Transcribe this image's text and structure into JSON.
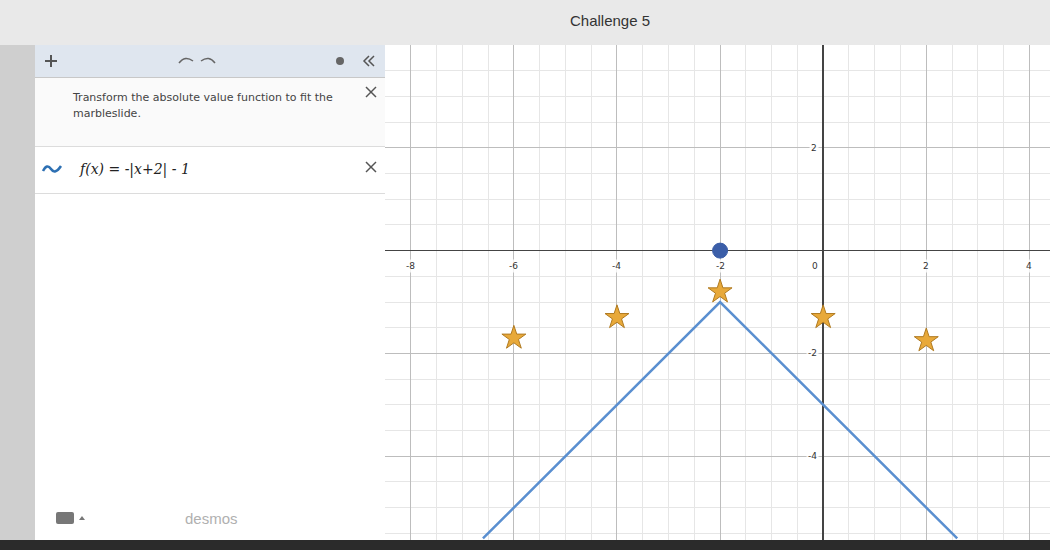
{
  "header": {
    "title": "Challenge 5"
  },
  "expressions": [
    {
      "kind": "note",
      "text": "Transform the absolute value function to fit the marbleslide."
    },
    {
      "kind": "function",
      "text": "f(x) = -|x+2| - 1"
    }
  ],
  "footer": {
    "brand": "desmos"
  },
  "chart_data": {
    "type": "line",
    "xlim": [
      -8.5,
      4.4
    ],
    "ylim": [
      -5.63,
      4
    ],
    "xticks": [
      -8,
      -6,
      -4,
      -2,
      0,
      2,
      4
    ],
    "yticks": [
      -4,
      -2,
      2
    ],
    "grid": true,
    "series": [
      {
        "type": "line",
        "color": "#5a8fd0",
        "line_style": "solid",
        "x": [
          -6.6,
          -2,
          2.6
        ],
        "values": [
          -5.6,
          -1,
          -5.6
        ]
      },
      {
        "type": "scatter",
        "marker": "star",
        "color": "#e8a93a",
        "x": [
          -6,
          -4,
          -2,
          0,
          2
        ],
        "values": [
          -1.7,
          -1.3,
          -0.8,
          -1.3,
          -1.75
        ]
      },
      {
        "type": "scatter",
        "marker": "circle",
        "color": "#3b5ea8",
        "x": [
          -2
        ],
        "values": [
          0
        ]
      }
    ]
  }
}
